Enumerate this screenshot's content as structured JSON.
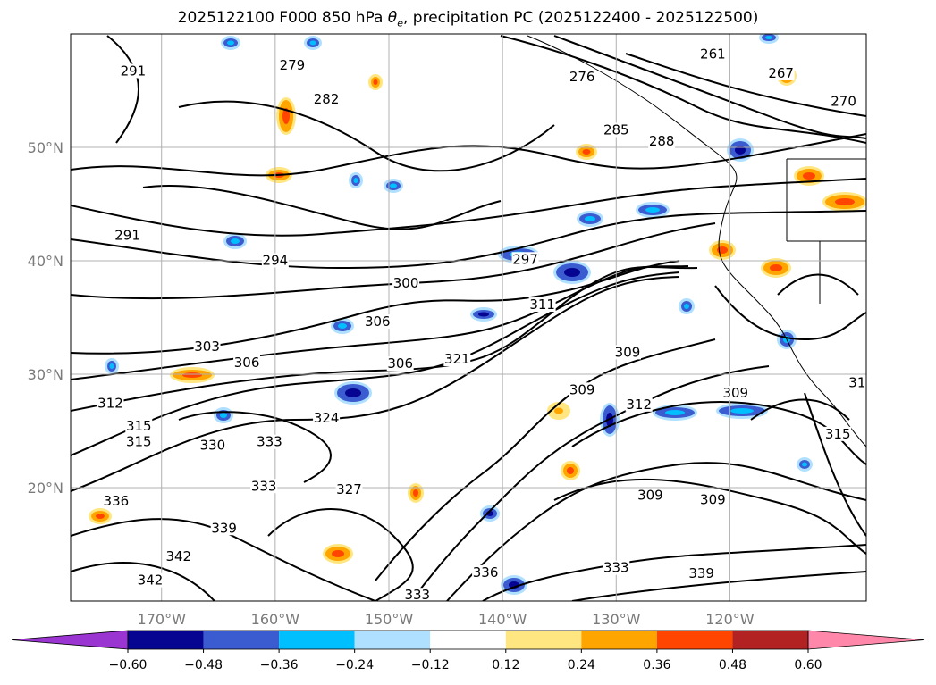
{
  "title": "2025122100 F000 850 hPa θe, precipitation PC (2025122400 - 2025122500)",
  "title_parts": {
    "prefix": "2025122100 F000 850 hPa ",
    "theta": "θ",
    "sub": "e",
    "suffix": ", precipitation PC (2025122400 - 2025122500)"
  },
  "map": {
    "lon_range": [
      -178,
      -108
    ],
    "lat_range": [
      10,
      60
    ],
    "lat_ticks": [
      {
        "value": 50,
        "label": "50°N"
      },
      {
        "value": 40,
        "label": "40°N"
      },
      {
        "value": 30,
        "label": "30°N"
      },
      {
        "value": 20,
        "label": "20°N"
      }
    ],
    "lon_ticks": [
      {
        "value": -170,
        "label": "170°W"
      },
      {
        "value": -160,
        "label": "160°W"
      },
      {
        "value": -150,
        "label": "150°W"
      },
      {
        "value": -140,
        "label": "140°W"
      },
      {
        "value": -130,
        "label": "130°W"
      },
      {
        "value": -120,
        "label": "120°W"
      }
    ],
    "grid": true,
    "contour_color": "#000000",
    "contour_labels": [
      {
        "text": "291",
        "lon": -172.5,
        "lat": 56.5
      },
      {
        "text": "279",
        "lon": -158.5,
        "lat": 57.0
      },
      {
        "text": "282",
        "lon": -155.5,
        "lat": 54.0
      },
      {
        "text": "276",
        "lon": -133.0,
        "lat": 56.0
      },
      {
        "text": "261",
        "lon": -121.5,
        "lat": 58.0
      },
      {
        "text": "267",
        "lon": -115.5,
        "lat": 56.3
      },
      {
        "text": "270",
        "lon": -110.0,
        "lat": 53.8
      },
      {
        "text": "285",
        "lon": -130.0,
        "lat": 51.3
      },
      {
        "text": "288",
        "lon": -126.0,
        "lat": 50.3
      },
      {
        "text": "291",
        "lon": -173.0,
        "lat": 42.0
      },
      {
        "text": "294",
        "lon": -160.0,
        "lat": 39.8
      },
      {
        "text": "297",
        "lon": -138.0,
        "lat": 39.9
      },
      {
        "text": "300",
        "lon": -148.5,
        "lat": 37.8
      },
      {
        "text": "306",
        "lon": -151.0,
        "lat": 34.4
      },
      {
        "text": "311",
        "lon": -136.5,
        "lat": 35.9
      },
      {
        "text": "303",
        "lon": -166.0,
        "lat": 32.2
      },
      {
        "text": "306",
        "lon": -162.5,
        "lat": 30.8
      },
      {
        "text": "306",
        "lon": -149.0,
        "lat": 30.7
      },
      {
        "text": "321",
        "lon": -144.0,
        "lat": 31.1
      },
      {
        "text": "309",
        "lon": -129.0,
        "lat": 31.7
      },
      {
        "text": "312",
        "lon": -174.5,
        "lat": 27.2
      },
      {
        "text": "315",
        "lon": -172.0,
        "lat": 25.2
      },
      {
        "text": "315",
        "lon": -172.0,
        "lat": 23.8
      },
      {
        "text": "324",
        "lon": -155.5,
        "lat": 25.9
      },
      {
        "text": "330",
        "lon": -165.5,
        "lat": 23.5
      },
      {
        "text": "333",
        "lon": -160.5,
        "lat": 23.8
      },
      {
        "text": "309",
        "lon": -133.0,
        "lat": 28.4
      },
      {
        "text": "312",
        "lon": -128.0,
        "lat": 27.1
      },
      {
        "text": "309",
        "lon": -119.5,
        "lat": 28.1
      },
      {
        "text": "333",
        "lon": -161.0,
        "lat": 19.9
      },
      {
        "text": "327",
        "lon": -153.5,
        "lat": 19.6
      },
      {
        "text": "336",
        "lon": -174.0,
        "lat": 18.6
      },
      {
        "text": "339",
        "lon": -164.5,
        "lat": 16.2
      },
      {
        "text": "342",
        "lon": -168.5,
        "lat": 13.7
      },
      {
        "text": "342",
        "lon": -171.0,
        "lat": 11.6
      },
      {
        "text": "309",
        "lon": -127.0,
        "lat": 19.1
      },
      {
        "text": "309",
        "lon": -121.5,
        "lat": 18.7
      },
      {
        "text": "315",
        "lon": -110.5,
        "lat": 24.5
      },
      {
        "text": "336",
        "lon": -141.5,
        "lat": 12.3
      },
      {
        "text": "339",
        "lon": -122.5,
        "lat": 12.2
      },
      {
        "text": "333",
        "lon": -130.0,
        "lat": 12.7
      },
      {
        "text": "333",
        "lon": -147.5,
        "lat": 10.3
      },
      {
        "text": "31",
        "lon": -108.8,
        "lat": 29.0
      }
    ]
  },
  "colorbar": {
    "ticks": [
      "−0.60",
      "−0.48",
      "−0.36",
      "−0.24",
      "−0.12",
      "0.12",
      "0.24",
      "0.36",
      "0.48",
      "0.60"
    ],
    "colors": [
      "#9a35d1",
      "#050591",
      "#3b5bd0",
      "#00bfff",
      "#b0e0ff",
      "#ffffff",
      "#ffe680",
      "#ffa500",
      "#ff4500",
      "#b22222",
      "#ff88aa"
    ]
  }
}
